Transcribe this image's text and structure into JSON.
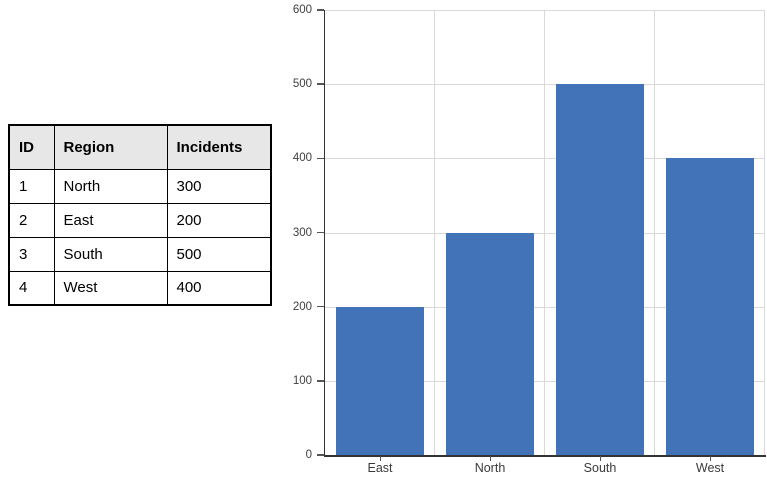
{
  "table": {
    "headers": [
      "ID",
      "Region",
      "Incidents"
    ],
    "rows": [
      [
        "1",
        "North",
        "300"
      ],
      [
        "2",
        "East",
        "200"
      ],
      [
        "3",
        "South",
        "500"
      ],
      [
        "4",
        "West",
        "400"
      ]
    ],
    "header_bg": "#e7e7e7",
    "border_color": "#000000"
  },
  "chart_data": {
    "type": "bar",
    "categories": [
      "East",
      "North",
      "South",
      "West"
    ],
    "values": [
      200,
      300,
      500,
      400
    ],
    "title": "",
    "xlabel": "",
    "ylabel": "",
    "ylim": [
      0,
      600
    ],
    "ytick_step": 100,
    "yticks": [
      0,
      100,
      200,
      300,
      400,
      500,
      600
    ],
    "grid": "both",
    "legend": "none",
    "bar_color": "#4272b7",
    "gridline_color": "#d9d9d9",
    "axis_color": "#333333",
    "label_color": "#3f3f3f"
  }
}
